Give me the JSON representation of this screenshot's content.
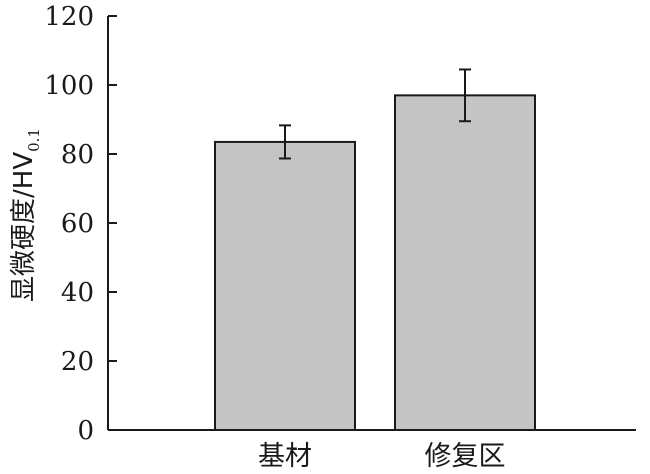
{
  "chart_data": {
    "type": "bar",
    "categories": [
      "基材",
      "修复区"
    ],
    "values": [
      83.5,
      97
    ],
    "errors": [
      4.8,
      7.5
    ],
    "ylabel_main": "显微硬度/HV",
    "ylabel_sub": "0.1",
    "ylim": [
      0,
      120
    ],
    "yticks": [
      0,
      20,
      40,
      60,
      80,
      100,
      120
    ],
    "bar_color": "#c4c4c4",
    "grid": false,
    "legend": "none"
  }
}
